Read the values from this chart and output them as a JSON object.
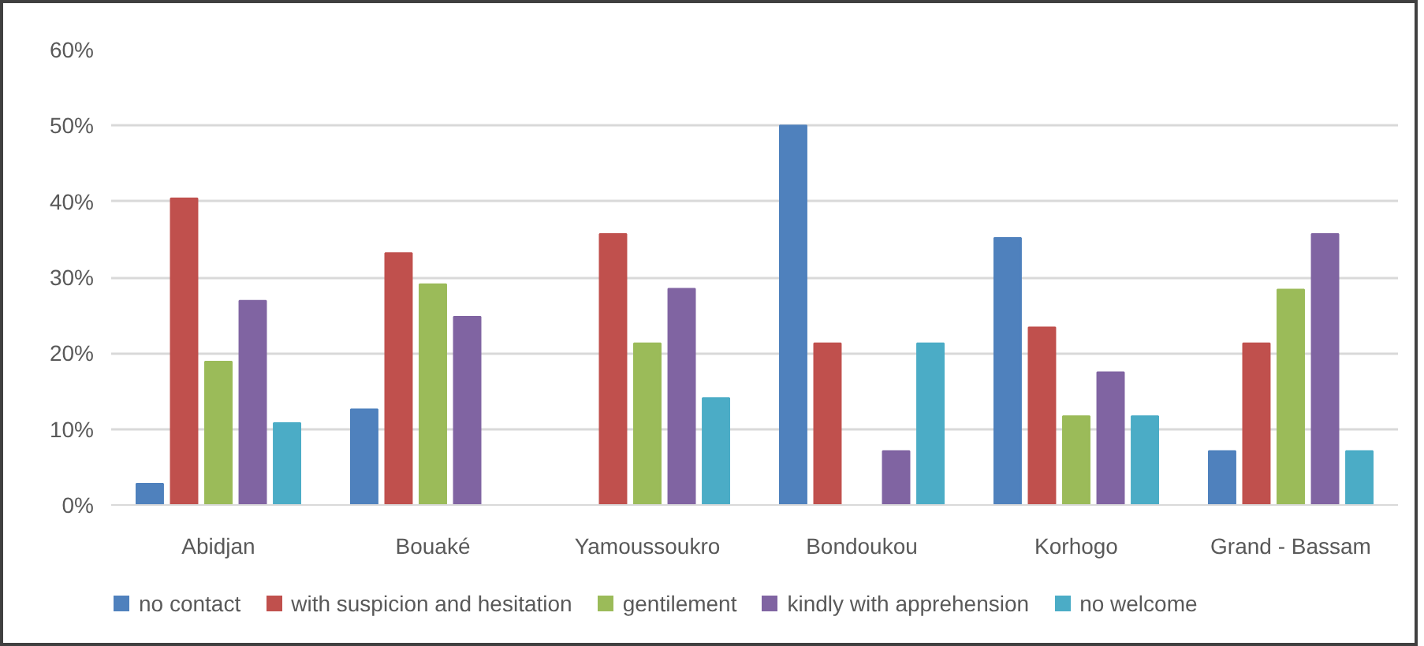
{
  "chart_data": {
    "type": "bar",
    "categories": [
      "Abidjan",
      "Bouaké",
      "Yamoussoukro",
      "Bondoukou",
      "Korhogo",
      "Grand - Bassam"
    ],
    "series": [
      {
        "name": "no contact",
        "color": "#4f81bd",
        "values": [
          2.8,
          12.6,
          0,
          50,
          35.2,
          7.1
        ]
      },
      {
        "name": "with suspicion and hesitation",
        "color": "#c0504d",
        "values": [
          40.4,
          33.2,
          35.7,
          21.3,
          23.4,
          21.3
        ]
      },
      {
        "name": "gentilement",
        "color": "#9bbb59",
        "values": [
          18.9,
          29.1,
          21.3,
          0,
          11.7,
          28.4
        ]
      },
      {
        "name": "kindly with apprehension",
        "color": "#8064a2",
        "values": [
          26.9,
          24.8,
          28.5,
          7.1,
          17.5,
          35.7
        ]
      },
      {
        "name": "no welcome",
        "color": "#4bacc6",
        "values": [
          10.8,
          0,
          14.1,
          21.3,
          11.7,
          7.1
        ]
      }
    ],
    "ylim": [
      0,
      60
    ],
    "yticks": [
      {
        "value": 0,
        "label": "0%"
      },
      {
        "value": 10,
        "label": "10%"
      },
      {
        "value": 20,
        "label": "20%"
      },
      {
        "value": 30,
        "label": "30%"
      },
      {
        "value": 40,
        "label": "40%"
      },
      {
        "value": 50,
        "label": "50%"
      },
      {
        "value": 60,
        "label": "60%"
      }
    ],
    "grid": "y",
    "legend": "bottom"
  }
}
